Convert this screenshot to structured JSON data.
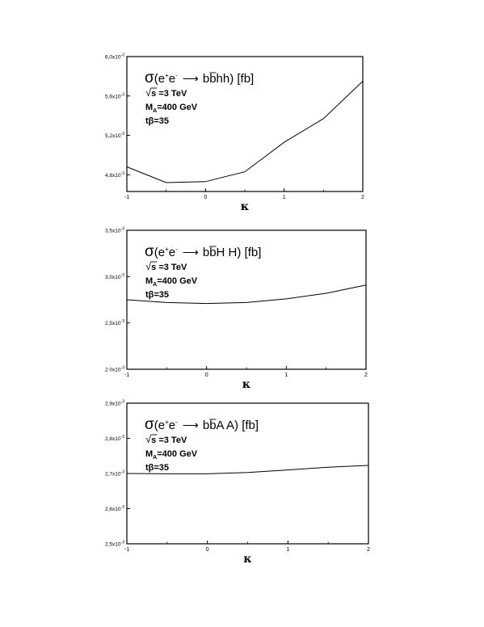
{
  "chart_data": [
    {
      "type": "line",
      "title": "σ(e⁺e⁻ ⟶ b b̄ h h) [fb]",
      "title_parts": {
        "sigma": "σ",
        "proc": "(e",
        "sup1": "+",
        "e": "e",
        "sup2": "-",
        "arrow": "⟶",
        "b1": "b",
        "b2": "b",
        "prod": "hh) [fb]"
      },
      "annotations": [
        "√s =3 TeV",
        "M_A=400 GeV",
        "tβ=35"
      ],
      "annotation_parts": {
        "sqrt": "√",
        "s": "s",
        "energy": " =3 TeV",
        "m": "M",
        "m_sub": "A",
        "mass": "=400 GeV",
        "tb": "tβ=35"
      },
      "xlabel": "κ",
      "x_ticks": [
        "-1",
        "0",
        "1",
        "2"
      ],
      "y_ticks": [
        {
          "mant": "4,8x10",
          "exp": "-3",
          "v": 0.0048
        },
        {
          "mant": "5,2x10",
          "exp": "-3",
          "v": 0.0052
        },
        {
          "mant": "5,6x10",
          "exp": "-3",
          "v": 0.0056
        },
        {
          "mant": "6,0x10",
          "exp": "-3",
          "v": 0.006
        }
      ],
      "xlim": [
        -1,
        2
      ],
      "ylim": [
        0.00463,
        0.006
      ],
      "grid": false,
      "series": [
        {
          "x": [
            -1,
            -0.5,
            0,
            0.5,
            1,
            1.5,
            2
          ],
          "y": [
            0.00488,
            0.00472,
            0.00473,
            0.00483,
            0.00513,
            0.00537,
            0.00575
          ]
        }
      ]
    },
    {
      "type": "line",
      "title": "σ(e⁺e⁻ ⟶ b b̄ H H) [fb]",
      "title_parts": {
        "sigma": "σ",
        "proc": "(e",
        "sup1": "+",
        "e": "e",
        "sup2": "-",
        "arrow": "⟶",
        "b1": "b",
        "b2": "b",
        "prod": "H H) [fb]"
      },
      "annotations": [
        "√s =3 TeV",
        "M_A=400 GeV",
        "tβ=35"
      ],
      "annotation_parts": {
        "sqrt": "√",
        "s": "s",
        "energy": " =3 TeV",
        "m": "M",
        "m_sub": "A",
        "mass": "=400 GeV",
        "tb": "tβ=35"
      },
      "xlabel": "κ",
      "x_ticks": [
        "-1",
        "0",
        "1",
        "2"
      ],
      "y_ticks": [
        {
          "mant": "2 0x10",
          "exp": "-3",
          "v": 0.002
        },
        {
          "mant": "2,5x10",
          "exp": "-3",
          "v": 0.0025
        },
        {
          "mant": "3,0x10",
          "exp": "-3",
          "v": 0.003
        },
        {
          "mant": "3,5x10",
          "exp": "-3",
          "v": 0.0035
        }
      ],
      "xlim": [
        -1,
        2
      ],
      "ylim": [
        0.002,
        0.0035
      ],
      "grid": false,
      "series": [
        {
          "x": [
            -1,
            -0.5,
            0,
            0.5,
            1,
            1.5,
            2
          ],
          "y": [
            0.00275,
            0.00272,
            0.00271,
            0.00272,
            0.00276,
            0.00282,
            0.00291
          ]
        }
      ]
    },
    {
      "type": "line",
      "title": "σ(e⁺e⁻ ⟶ b b̄ A A) [fb]",
      "title_parts": {
        "sigma": "σ",
        "proc": "(e",
        "sup1": "+",
        "e": "e",
        "sup2": "-",
        "arrow": "⟶",
        "b1": "b",
        "b2": "b",
        "prod": "A A) [fb]"
      },
      "annotations": [
        "√s =3 TeV",
        "M_A=400 GeV",
        "tβ=35"
      ],
      "annotation_parts": {
        "sqrt": "√",
        "s": "s",
        "energy": " =3 TeV",
        "m": "M",
        "m_sub": "A",
        "mass": "=400 GeV",
        "tb": "tβ=35"
      },
      "xlabel": "κ",
      "x_ticks": [
        "-1",
        "0",
        "1",
        "2"
      ],
      "y_ticks": [
        {
          "mant": "2,5x10",
          "exp": "-3",
          "v": 0.0025
        },
        {
          "mant": "2,6x10",
          "exp": "-3",
          "v": 0.0026
        },
        {
          "mant": "2,7x10",
          "exp": "-3",
          "v": 0.0027
        },
        {
          "mant": "2,8x10",
          "exp": "-3",
          "v": 0.0028
        },
        {
          "mant": "2,9x10",
          "exp": "-3",
          "v": 0.0029
        }
      ],
      "xlim": [
        -1,
        2
      ],
      "ylim": [
        0.0025,
        0.0029
      ],
      "grid": false,
      "series": [
        {
          "x": [
            -1,
            -0.5,
            0,
            0.5,
            1,
            1.5,
            2
          ],
          "y": [
            0.0027,
            0.002699,
            0.002699,
            0.002703,
            0.00271,
            0.002718,
            0.002723
          ]
        }
      ]
    }
  ]
}
